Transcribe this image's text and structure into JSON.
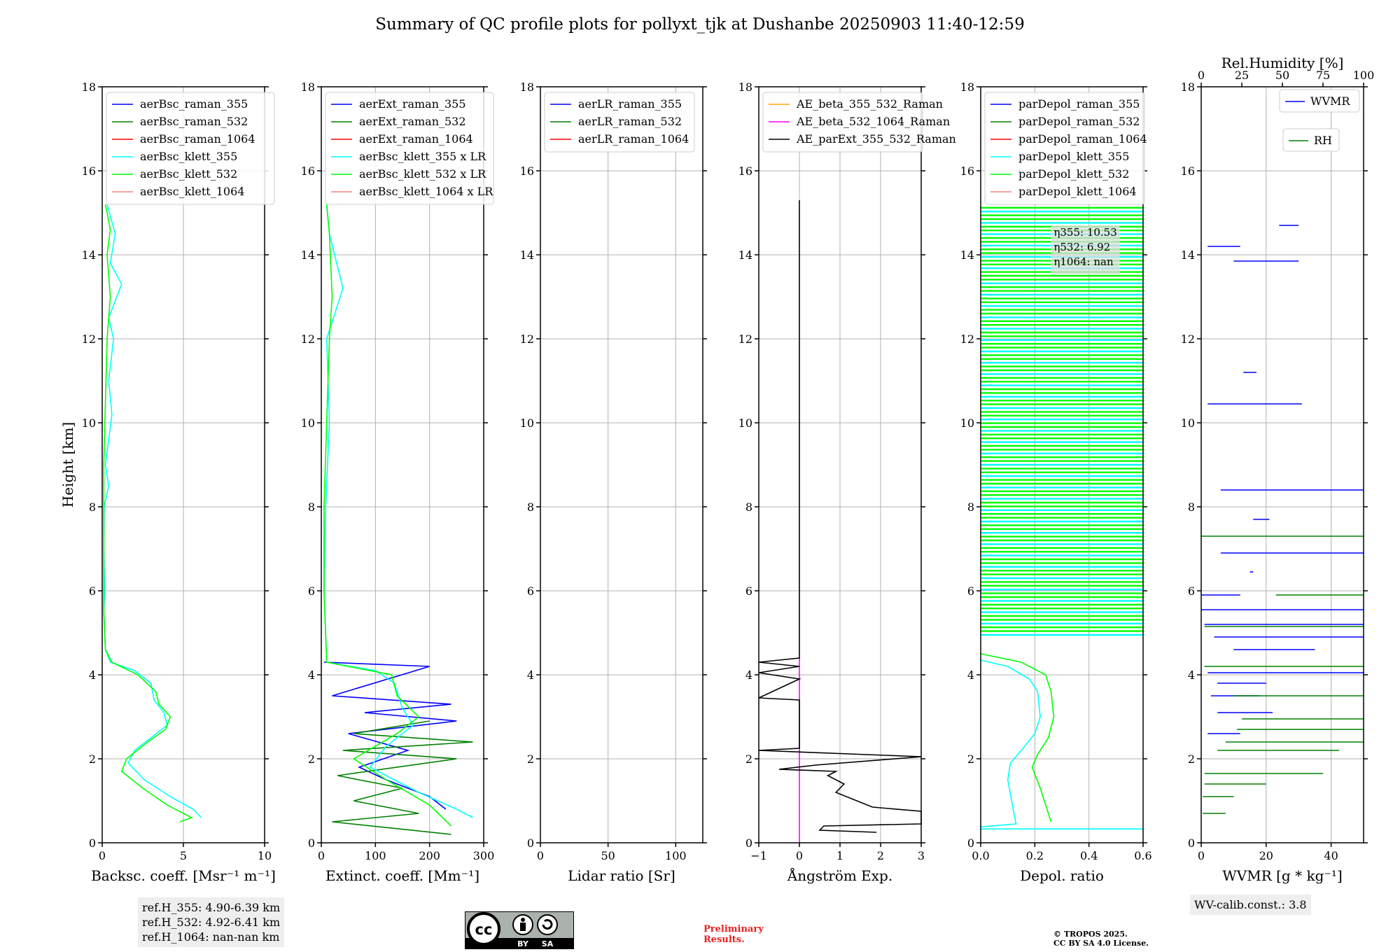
{
  "title": "Summary of QC profile plots for pollyxt_tjk at Dushanbe 20250903 11:40-12:59",
  "y_label": "Height [km]",
  "y_ticks": [
    "0",
    "2",
    "4",
    "6",
    "8",
    "10",
    "12",
    "14",
    "16",
    "18"
  ],
  "colors": {
    "blue": "#0000ff",
    "green": "#008000",
    "red": "#ff0000",
    "cyan": "#00ffff",
    "lime": "#00ff00",
    "salmon": "#f08080",
    "orange": "#ffa500",
    "magenta": "#ff00ff",
    "black": "#000000"
  },
  "chart_data": [
    {
      "type": "line",
      "panel": "backscatter",
      "xlabel": "Backsc. coeff. [Msr⁻¹ m⁻¹]",
      "ylabel": "Height [km]",
      "xlim": [
        0,
        10
      ],
      "ylim": [
        0,
        18
      ],
      "xticks": [
        "0",
        "5",
        "10"
      ],
      "legend": [
        "aerBsc_raman_355",
        "aerBsc_raman_532",
        "aerBsc_raman_1064",
        "aerBsc_klett_355",
        "aerBsc_klett_532",
        "aerBsc_klett_1064"
      ],
      "series": [
        {
          "name": "aerBsc_klett_355",
          "color": "cyan",
          "points": [
            [
              6.1,
              0.6
            ],
            [
              5.6,
              0.8
            ],
            [
              4.2,
              1.1
            ],
            [
              2.6,
              1.5
            ],
            [
              1.6,
              1.9
            ],
            [
              2.0,
              2.2
            ],
            [
              3.0,
              2.5
            ],
            [
              4.0,
              2.8
            ],
            [
              3.8,
              3.1
            ],
            [
              3.2,
              3.4
            ],
            [
              3.0,
              3.8
            ],
            [
              2.0,
              4.1
            ],
            [
              0.5,
              4.3
            ],
            [
              0.2,
              4.6
            ],
            [
              0.1,
              5.5
            ],
            [
              0.15,
              6.0
            ],
            [
              0.1,
              7.0
            ],
            [
              0.12,
              8.0
            ],
            [
              0.4,
              8.5
            ],
            [
              0.2,
              9.0
            ],
            [
              0.6,
              10.2
            ],
            [
              0.4,
              11.0
            ],
            [
              0.7,
              12.0
            ],
            [
              0.4,
              12.5
            ],
            [
              1.2,
              13.3
            ],
            [
              0.5,
              13.8
            ],
            [
              0.8,
              14.5
            ],
            [
              0.3,
              15.2
            ]
          ]
        },
        {
          "name": "aerBsc_klett_532",
          "color": "lime",
          "points": [
            [
              4.8,
              0.5
            ],
            [
              5.5,
              0.6
            ],
            [
              4.0,
              0.9
            ],
            [
              2.5,
              1.3
            ],
            [
              1.2,
              1.7
            ],
            [
              1.5,
              2.0
            ],
            [
              2.8,
              2.4
            ],
            [
              3.9,
              2.7
            ],
            [
              4.2,
              3.0
            ],
            [
              3.5,
              3.3
            ],
            [
              3.3,
              3.6
            ],
            [
              2.2,
              4.0
            ],
            [
              0.6,
              4.3
            ],
            [
              0.2,
              4.6
            ],
            [
              0.1,
              5.5
            ],
            [
              0.1,
              7.0
            ],
            [
              0.1,
              9.0
            ],
            [
              0.2,
              10.5
            ],
            [
              0.3,
              12.0
            ],
            [
              0.5,
              13.0
            ],
            [
              0.3,
              14.0
            ],
            [
              0.5,
              14.6
            ],
            [
              0.2,
              15.2
            ]
          ]
        }
      ],
      "ref_heights": [
        "ref.H_355: 4.90-6.39 km",
        "ref.H_532: 4.92-6.41 km",
        "ref.H_1064: nan-nan km"
      ]
    },
    {
      "type": "line",
      "panel": "extinction",
      "xlabel": "Extinct. coeff. [Mm⁻¹]",
      "ylabel": "Height [km]",
      "xlim": [
        0,
        300
      ],
      "ylim": [
        0,
        18
      ],
      "xticks": [
        "0",
        "100",
        "200",
        "300"
      ],
      "legend": [
        "aerExt_raman_355",
        "aerExt_raman_532",
        "aerExt_raman_1064",
        "aerBsc_klett_355 x LR",
        "aerBsc_klett_532 x LR",
        "aerBsc_klett_1064 x LR"
      ],
      "series": [
        {
          "name": "aerExt_raman_355",
          "color": "blue",
          "points": [
            [
              230,
              0.8
            ],
            [
              200,
              1.1
            ],
            [
              120,
              1.5
            ],
            [
              70,
              1.8
            ],
            [
              160,
              2.2
            ],
            [
              50,
              2.6
            ],
            [
              250,
              2.9
            ],
            [
              80,
              3.1
            ],
            [
              240,
              3.3
            ],
            [
              20,
              3.5
            ],
            [
              200,
              4.2
            ],
            [
              5,
              4.3
            ]
          ]
        },
        {
          "name": "aerExt_raman_532",
          "color": "green",
          "points": [
            [
              240,
              0.2
            ],
            [
              20,
              0.5
            ],
            [
              180,
              0.7
            ],
            [
              60,
              1.0
            ],
            [
              150,
              1.3
            ],
            [
              30,
              1.6
            ],
            [
              250,
              2.0
            ],
            [
              40,
              2.2
            ],
            [
              280,
              2.4
            ],
            [
              60,
              2.6
            ],
            [
              200,
              2.9
            ]
          ]
        },
        {
          "name": "aerBsc_klett_355 x LR",
          "color": "cyan",
          "points": [
            [
              280,
              0.6
            ],
            [
              250,
              0.8
            ],
            [
              180,
              1.2
            ],
            [
              90,
              1.8
            ],
            [
              120,
              2.3
            ],
            [
              170,
              2.8
            ],
            [
              150,
              3.2
            ],
            [
              135,
              3.8
            ],
            [
              100,
              4.1
            ],
            [
              10,
              4.3
            ],
            [
              5,
              6.0
            ],
            [
              8,
              8.0
            ],
            [
              15,
              10.0
            ],
            [
              10,
              12.0
            ],
            [
              40,
              13.2
            ],
            [
              15,
              14.5
            ],
            [
              10,
              15.2
            ]
          ]
        },
        {
          "name": "aerBsc_klett_532 x LR",
          "color": "lime",
          "points": [
            [
              240,
              0.4
            ],
            [
              200,
              0.9
            ],
            [
              120,
              1.5
            ],
            [
              60,
              2.0
            ],
            [
              140,
              2.6
            ],
            [
              180,
              3.0
            ],
            [
              140,
              3.5
            ],
            [
              130,
              4.0
            ],
            [
              10,
              4.3
            ],
            [
              5,
              6.0
            ],
            [
              5,
              8.0
            ],
            [
              10,
              10.0
            ],
            [
              15,
              12.0
            ],
            [
              20,
              13.0
            ],
            [
              15,
              14.5
            ],
            [
              10,
              15.2
            ]
          ]
        }
      ]
    },
    {
      "type": "line",
      "panel": "lidar_ratio",
      "xlabel": "Lidar ratio [Sr]",
      "ylabel": "Height [km]",
      "xlim": [
        0,
        120
      ],
      "ylim": [
        0,
        18
      ],
      "xticks": [
        "0",
        "50",
        "100"
      ],
      "legend": [
        "aerLR_raman_355",
        "aerLR_raman_532",
        "aerLR_raman_1064"
      ],
      "series": []
    },
    {
      "type": "line",
      "panel": "angstrom",
      "xlabel": "Ångström Exp.",
      "ylabel": "Height [km]",
      "xlim": [
        -1,
        3
      ],
      "ylim": [
        0,
        18
      ],
      "xticks": [
        "−1",
        "0",
        "1",
        "2",
        "3"
      ],
      "legend": [
        "AE_beta_355_532_Raman",
        "AE_beta_532_1064_Raman",
        "AE_parExt_355_532_Raman"
      ],
      "series": [
        {
          "name": "AE_beta_532_1064_Raman",
          "color": "magenta",
          "points": [
            [
              0,
              0
            ],
            [
              0,
              4.4
            ]
          ]
        },
        {
          "name": "AE_parExt_355_532_Raman",
          "color": "black",
          "points": [
            [
              1.9,
              0.25
            ],
            [
              0.5,
              0.3
            ],
            [
              0.6,
              0.4
            ],
            [
              3.0,
              0.45
            ],
            [
              3.0,
              0.75
            ],
            [
              1.8,
              0.85
            ],
            [
              0.9,
              1.2
            ],
            [
              1.1,
              1.4
            ],
            [
              0.7,
              1.6
            ],
            [
              0.9,
              1.7
            ],
            [
              -0.5,
              1.75
            ],
            [
              0.4,
              1.85
            ],
            [
              3.0,
              2.05
            ],
            [
              -1,
              2.2
            ],
            [
              0,
              2.25
            ],
            [
              0,
              3.4
            ],
            [
              -1,
              3.45
            ],
            [
              0,
              3.9
            ],
            [
              -1,
              4.05
            ],
            [
              0,
              4.2
            ],
            [
              -1,
              4.3
            ],
            [
              0,
              4.4
            ],
            [
              0,
              15.3
            ]
          ]
        }
      ]
    },
    {
      "type": "line",
      "panel": "depolarization",
      "xlabel": "Depol. ratio",
      "ylabel": "Height [km]",
      "xlim": [
        0,
        0.6
      ],
      "ylim": [
        0,
        18
      ],
      "xticks": [
        "0.0",
        "0.2",
        "0.4",
        "0.6"
      ],
      "legend": [
        "parDepol_raman_355",
        "parDepol_raman_532",
        "parDepol_raman_1064",
        "parDepol_klett_355",
        "parDepol_klett_532",
        "parDepol_klett_1064"
      ],
      "series": [
        {
          "name": "parDepol_klett_355",
          "color": "cyan",
          "points": [
            [
              0.6,
              0.33
            ],
            [
              0.0,
              0.33
            ],
            [
              0.0,
              0.38
            ],
            [
              0.13,
              0.45
            ],
            [
              0.12,
              0.8
            ],
            [
              0.1,
              1.5
            ],
            [
              0.11,
              1.9
            ],
            [
              0.15,
              2.2
            ],
            [
              0.2,
              2.6
            ],
            [
              0.22,
              3.0
            ],
            [
              0.21,
              3.6
            ],
            [
              0.18,
              3.9
            ],
            [
              0.1,
              4.2
            ],
            [
              0.0,
              4.35
            ]
          ]
        },
        {
          "name": "parDepol_klett_532",
          "color": "lime",
          "points": [
            [
              0.26,
              0.5
            ],
            [
              0.24,
              0.9
            ],
            [
              0.22,
              1.3
            ],
            [
              0.19,
              1.8
            ],
            [
              0.21,
              2.1
            ],
            [
              0.25,
              2.5
            ],
            [
              0.27,
              3.0
            ],
            [
              0.26,
              3.6
            ],
            [
              0.24,
              4.0
            ],
            [
              0.15,
              4.3
            ],
            [
              0.0,
              4.5
            ]
          ]
        }
      ],
      "eta_labels": [
        "η355: 10.53",
        "η532: 6.92",
        "η1064: nan"
      ]
    },
    {
      "type": "line",
      "panel": "water_vapor",
      "xlabel": "WVMR [g * kg⁻¹]",
      "ylabel": "Height [km]",
      "xlim": [
        0,
        50
      ],
      "ylim": [
        0,
        18
      ],
      "xticks": [
        "0",
        "20",
        "40"
      ],
      "top_xlabel": "Rel.Humidity [%]",
      "top_xlim": [
        0,
        100
      ],
      "top_xticks": [
        "0",
        "25",
        "50",
        "75",
        "100"
      ],
      "legend": [
        "WVMR",
        "RH"
      ],
      "series": [
        {
          "name": "WVMR",
          "color": "blue",
          "segments": [
            [
              24,
              30,
              14.7
            ],
            [
              2,
              12,
              14.2
            ],
            [
              10,
              30,
              13.85
            ],
            [
              13,
              17,
              11.2
            ],
            [
              2,
              31,
              10.45
            ],
            [
              6,
              50,
              8.4
            ],
            [
              16,
              21,
              7.7
            ],
            [
              6,
              50,
              6.9
            ],
            [
              15,
              16,
              6.45
            ],
            [
              0,
              12,
              5.9
            ],
            [
              0,
              50,
              5.55
            ],
            [
              1,
              50,
              5.2
            ],
            [
              4,
              50,
              4.9
            ],
            [
              10,
              35,
              4.6
            ],
            [
              2,
              50,
              4.05
            ],
            [
              5,
              20,
              3.8
            ],
            [
              3,
              18,
              3.5
            ],
            [
              5,
              22,
              3.1
            ],
            [
              2,
              12,
              2.6
            ]
          ]
        },
        {
          "name": "RH",
          "color": "green",
          "segments": [
            [
              0,
              100,
              7.3
            ],
            [
              46,
              100,
              5.9
            ],
            [
              2,
              100,
              5.15
            ],
            [
              2,
              100,
              4.2
            ],
            [
              20,
              100,
              3.5
            ],
            [
              25,
              100,
              2.95
            ],
            [
              22,
              100,
              2.7
            ],
            [
              15,
              100,
              2.4
            ],
            [
              10,
              85,
              2.2
            ],
            [
              2,
              75,
              1.65
            ],
            [
              2,
              40,
              1.4
            ],
            [
              1,
              20,
              1.1
            ],
            [
              1,
              15,
              0.7
            ]
          ]
        }
      ],
      "calibration": "WV-calib.const.: 3.8"
    }
  ],
  "footer": {
    "license_badge": [
      "cc",
      "BY",
      "SA"
    ],
    "preliminary": [
      "Preliminary",
      "Results."
    ],
    "copyright": [
      "© TROPOS 2025.",
      "CC BY SA 4.0 License."
    ]
  }
}
